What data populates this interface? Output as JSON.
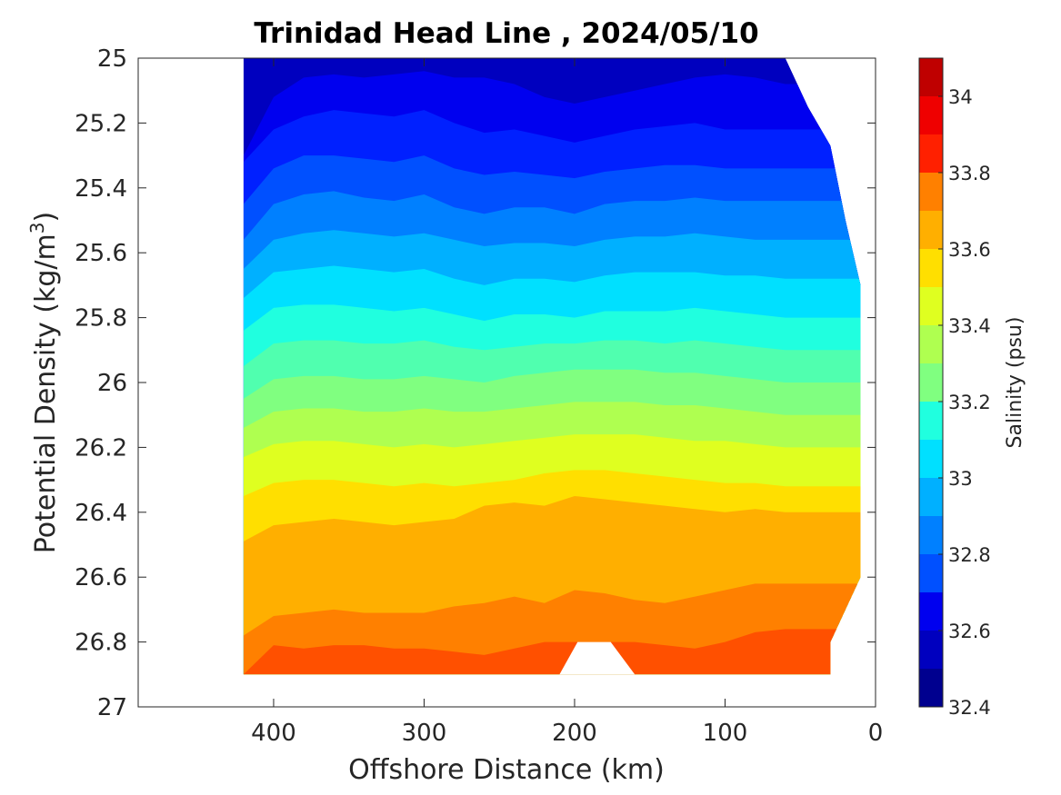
{
  "chart_data": {
    "type": "contour",
    "title": "Trinidad Head Line , 2024/05/10",
    "xlabel": "Offshore Distance (km)",
    "ylabel": "Potential Density (kg/m",
    "ylabel_sup": "3",
    "ylabel_close": ")",
    "xlim": [
      490,
      0
    ],
    "ylim": [
      25,
      27
    ],
    "y_reversed": true,
    "x_reversed": true,
    "xticks": [
      400,
      300,
      200,
      100,
      0
    ],
    "yticks": [
      25,
      25.2,
      25.4,
      25.6,
      25.8,
      26,
      26.2,
      26.4,
      26.6,
      26.8,
      27
    ],
    "colorbar": {
      "label": "Salinity (psu)",
      "range": [
        32.4,
        34.1
      ],
      "ticks": [
        32.4,
        32.6,
        32.8,
        33,
        33.2,
        33.4,
        33.6,
        33.8,
        34
      ],
      "levels": [
        32.4,
        32.5,
        32.6,
        32.7,
        32.8,
        32.9,
        33.0,
        33.1,
        33.2,
        33.3,
        33.4,
        33.5,
        33.6,
        33.7,
        33.8,
        33.9,
        34.0,
        34.1
      ],
      "colors": [
        "#00008f",
        "#0000bf",
        "#0000ef",
        "#0020ff",
        "#0050ff",
        "#0080ff",
        "#00b0ff",
        "#00e0ff",
        "#20ffdf",
        "#50ffaf",
        "#80ff80",
        "#afff50",
        "#dfff20",
        "#ffdf00",
        "#ffaf00",
        "#ff8000",
        "#ff5000",
        "#ff2000",
        "#ef0000",
        "#bf0000"
      ]
    },
    "data_extent": {
      "x_offshore_max": 420,
      "bottom_density": 26.9,
      "gap_x": [
        210,
        160
      ],
      "gap_density": 26.8
    },
    "contour_lines": [
      {
        "level": 32.6,
        "x": [
          420,
          400,
          380,
          360,
          340,
          320,
          300,
          280,
          260,
          240,
          220,
          200,
          180,
          160,
          140,
          120,
          100,
          80,
          60
        ],
        "y": [
          25.0,
          25.0,
          25.0,
          25.0,
          25.0,
          25.0,
          25.0,
          25.0,
          25.0,
          25.02,
          25.06,
          25.08,
          25.07,
          25.05,
          25.02,
          25.0,
          25.0,
          25.0,
          25.0
        ]
      },
      {
        "level": 32.7,
        "x": [
          420,
          400,
          380,
          360,
          340,
          320,
          300,
          280,
          260,
          240,
          220,
          200,
          180,
          160,
          140,
          120,
          100,
          80,
          60
        ],
        "y": [
          25.3,
          25.12,
          25.06,
          25.05,
          25.06,
          25.05,
          25.04,
          25.06,
          25.06,
          25.08,
          25.12,
          25.14,
          25.12,
          25.1,
          25.08,
          25.06,
          25.05,
          25.06,
          25.08
        ]
      },
      {
        "level": 32.8,
        "x": [
          420,
          400,
          380,
          360,
          340,
          320,
          300,
          280,
          260,
          240,
          220,
          200,
          180,
          160,
          140,
          120,
          100,
          80,
          60
        ],
        "y": [
          25.32,
          25.22,
          25.18,
          25.16,
          25.17,
          25.18,
          25.16,
          25.2,
          25.23,
          25.22,
          25.24,
          25.26,
          25.24,
          25.22,
          25.21,
          25.2,
          25.22,
          25.22,
          25.22
        ]
      },
      {
        "level": 32.9,
        "x": [
          420,
          400,
          380,
          360,
          340,
          320,
          300,
          280,
          260,
          240,
          220,
          200,
          180,
          160,
          140,
          120,
          100,
          80,
          60
        ],
        "y": [
          25.45,
          25.34,
          25.3,
          25.3,
          25.31,
          25.32,
          25.3,
          25.34,
          25.36,
          25.35,
          25.36,
          25.37,
          25.35,
          25.34,
          25.33,
          25.33,
          25.34,
          25.34,
          25.34
        ]
      },
      {
        "level": 33.0,
        "x": [
          420,
          400,
          380,
          360,
          340,
          320,
          300,
          280,
          260,
          240,
          220,
          200,
          180,
          160,
          140,
          120,
          100,
          80,
          60
        ],
        "y": [
          25.56,
          25.45,
          25.42,
          25.41,
          25.43,
          25.44,
          25.42,
          25.46,
          25.48,
          25.46,
          25.46,
          25.48,
          25.45,
          25.44,
          25.44,
          25.43,
          25.44,
          25.44,
          25.44
        ]
      },
      {
        "level": 33.1,
        "x": [
          420,
          400,
          380,
          360,
          340,
          320,
          300,
          280,
          260,
          240,
          220,
          200,
          180,
          160,
          140,
          120,
          100,
          80,
          60
        ],
        "y": [
          25.65,
          25.56,
          25.54,
          25.53,
          25.54,
          25.55,
          25.54,
          25.56,
          25.58,
          25.57,
          25.57,
          25.58,
          25.56,
          25.55,
          25.55,
          25.54,
          25.55,
          25.56,
          25.56
        ]
      },
      {
        "level": 33.2,
        "x": [
          420,
          400,
          380,
          360,
          340,
          320,
          300,
          280,
          260,
          240,
          220,
          200,
          180,
          160,
          140,
          120,
          100,
          80,
          60
        ],
        "y": [
          25.74,
          25.66,
          25.65,
          25.64,
          25.65,
          25.66,
          25.65,
          25.68,
          25.7,
          25.68,
          25.68,
          25.69,
          25.67,
          25.66,
          25.66,
          25.66,
          25.67,
          25.67,
          25.68
        ]
      },
      {
        "level": 33.3,
        "x": [
          420,
          400,
          380,
          360,
          340,
          320,
          300,
          280,
          260,
          240,
          220,
          200,
          180,
          160,
          140,
          120,
          100,
          80,
          60
        ],
        "y": [
          25.84,
          25.77,
          25.76,
          25.76,
          25.77,
          25.78,
          25.77,
          25.79,
          25.81,
          25.79,
          25.79,
          25.8,
          25.78,
          25.78,
          25.78,
          25.77,
          25.78,
          25.79,
          25.8
        ]
      },
      {
        "level": 33.4,
        "x": [
          420,
          400,
          380,
          360,
          340,
          320,
          300,
          280,
          260,
          240,
          220,
          200,
          180,
          160,
          140,
          120,
          100,
          80,
          60
        ],
        "y": [
          25.95,
          25.88,
          25.87,
          25.87,
          25.88,
          25.88,
          25.87,
          25.89,
          25.9,
          25.89,
          25.88,
          25.88,
          25.87,
          25.87,
          25.88,
          25.87,
          25.88,
          25.89,
          25.9
        ]
      },
      {
        "level": 33.5,
        "x": [
          420,
          400,
          380,
          360,
          340,
          320,
          300,
          280,
          260,
          240,
          220,
          200,
          180,
          160,
          140,
          120,
          100,
          80,
          60
        ],
        "y": [
          26.05,
          25.99,
          25.98,
          25.98,
          25.99,
          25.99,
          25.98,
          25.99,
          26.0,
          25.98,
          25.97,
          25.96,
          25.96,
          25.96,
          25.97,
          25.97,
          25.98,
          25.99,
          26.0
        ]
      },
      {
        "level": 33.6,
        "x": [
          420,
          400,
          380,
          360,
          340,
          320,
          300,
          280,
          260,
          240,
          220,
          200,
          180,
          160,
          140,
          120,
          100,
          80,
          60
        ],
        "y": [
          26.14,
          26.09,
          26.08,
          26.08,
          26.09,
          26.09,
          26.08,
          26.09,
          26.09,
          26.08,
          26.07,
          26.06,
          26.06,
          26.06,
          26.07,
          26.07,
          26.08,
          26.09,
          26.1
        ]
      },
      {
        "level": 33.7,
        "x": [
          420,
          400,
          380,
          360,
          340,
          320,
          300,
          280,
          260,
          240,
          220,
          200,
          180,
          160,
          140,
          120,
          100,
          80,
          60
        ],
        "y": [
          26.23,
          26.19,
          26.18,
          26.18,
          26.19,
          26.2,
          26.19,
          26.2,
          26.19,
          26.18,
          26.17,
          26.16,
          26.16,
          26.16,
          26.17,
          26.18,
          26.18,
          26.19,
          26.2
        ]
      },
      {
        "level": 33.8,
        "x": [
          420,
          400,
          380,
          360,
          340,
          320,
          300,
          280,
          260,
          240,
          220,
          200,
          180,
          160,
          140,
          120,
          100,
          80,
          60
        ],
        "y": [
          26.35,
          26.31,
          26.3,
          26.3,
          26.31,
          26.32,
          26.31,
          26.32,
          26.31,
          26.3,
          26.28,
          26.27,
          26.27,
          26.28,
          26.29,
          26.3,
          26.31,
          26.31,
          26.32
        ]
      },
      {
        "level": 33.9,
        "x": [
          420,
          400,
          380,
          360,
          340,
          320,
          300,
          280,
          260,
          240,
          220,
          200,
          180,
          160,
          140,
          120,
          100,
          80,
          60
        ],
        "y": [
          26.49,
          26.44,
          26.43,
          26.42,
          26.43,
          26.44,
          26.43,
          26.42,
          26.38,
          26.37,
          26.38,
          26.35,
          26.36,
          26.37,
          26.38,
          26.39,
          26.4,
          26.39,
          26.4
        ]
      },
      {
        "level": 34.0,
        "x": [
          420,
          400,
          380,
          360,
          340,
          320,
          300,
          280,
          260,
          240,
          220,
          200,
          180,
          160,
          140,
          120,
          100,
          80,
          60
        ],
        "y": [
          26.78,
          26.72,
          26.71,
          26.7,
          26.71,
          26.71,
          26.71,
          26.69,
          26.68,
          26.66,
          26.68,
          26.64,
          26.65,
          26.67,
          26.68,
          26.66,
          26.64,
          26.62,
          26.62
        ]
      },
      {
        "level": 34.1,
        "x": [
          420,
          400,
          380,
          360,
          340,
          320,
          300,
          280,
          260,
          240,
          220,
          200,
          180,
          160,
          140,
          120,
          100,
          80,
          60
        ],
        "y": [
          26.9,
          26.81,
          26.82,
          26.81,
          26.81,
          26.82,
          26.82,
          26.83,
          26.84,
          26.82,
          26.8,
          26.8,
          26.8,
          26.8,
          26.81,
          26.82,
          26.8,
          26.77,
          26.76
        ]
      }
    ]
  }
}
